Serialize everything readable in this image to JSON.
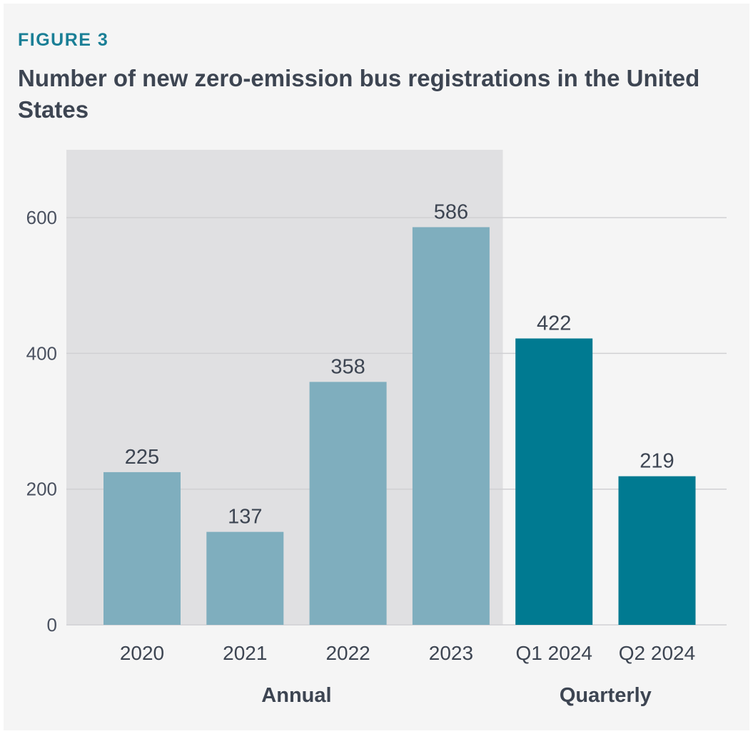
{
  "header": {
    "figure_label": "FIGURE 3",
    "title": "Number of new zero-emission bus registrations in the United States"
  },
  "chart_data": {
    "type": "bar",
    "title": "Number of new zero-emission bus registrations in the United States",
    "xlabel": "",
    "ylabel": "",
    "ylim": [
      0,
      700
    ],
    "yticks": [
      0,
      200,
      400,
      600
    ],
    "ytick_labels": [
      "0",
      "200",
      "400",
      "600"
    ],
    "grid": true,
    "categories": [
      "2020",
      "2021",
      "2022",
      "2023",
      "Q1 2024",
      "Q2 2024"
    ],
    "values": [
      225,
      137,
      358,
      586,
      422,
      219
    ],
    "value_labels": [
      "225",
      "137",
      "358",
      "586",
      "422",
      "219"
    ],
    "groups": [
      {
        "label": "Annual",
        "categories": [
          "2020",
          "2021",
          "2022",
          "2023"
        ],
        "color": "#7faebe",
        "shaded": true
      },
      {
        "label": "Quarterly",
        "categories": [
          "Q1 2024",
          "Q2 2024"
        ],
        "color": "#007a91",
        "shaded": false
      }
    ],
    "shade_color": "#e0e0e2",
    "grid_color": "#d0d0d3"
  }
}
